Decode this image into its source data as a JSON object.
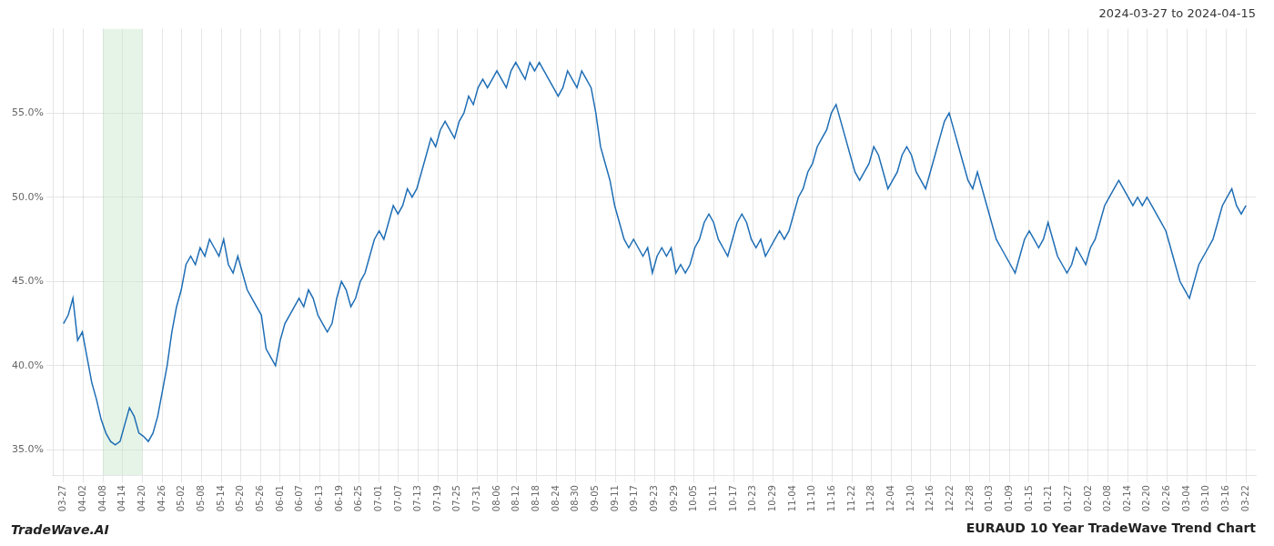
{
  "chart_data": {
    "type": "line",
    "title": "EURAUD 10 Year TradeWave Trend Chart",
    "subtitle": "2024-03-27 to 2024-04-15",
    "annotations": [
      "TradeWave.AI"
    ],
    "color": "#1f6eb5",
    "grid": true,
    "shaded_range": {
      "from": 8.3667,
      "to": 16.7333,
      "color": "#c8e6c9"
    },
    "xlim": [
      -2.0917,
      253.0917
    ],
    "xticks": [
      {
        "value": 0,
        "label": "03-27"
      },
      {
        "value": 4.1833,
        "label": "04-02"
      },
      {
        "value": 8.3667,
        "label": "04-08"
      },
      {
        "value": 12.55,
        "label": "04-14"
      },
      {
        "value": 16.7333,
        "label": "04-20"
      },
      {
        "value": 20.9167,
        "label": "04-26"
      },
      {
        "value": 25.1,
        "label": "05-02"
      },
      {
        "value": 29.2833,
        "label": "05-08"
      },
      {
        "value": 33.4667,
        "label": "05-14"
      },
      {
        "value": 37.65,
        "label": "05-20"
      },
      {
        "value": 41.8333,
        "label": "05-26"
      },
      {
        "value": 46.0167,
        "label": "06-01"
      },
      {
        "value": 50.2,
        "label": "06-07"
      },
      {
        "value": 54.3833,
        "label": "06-13"
      },
      {
        "value": 58.5667,
        "label": "06-19"
      },
      {
        "value": 62.75,
        "label": "06-25"
      },
      {
        "value": 66.9333,
        "label": "07-01"
      },
      {
        "value": 71.1167,
        "label": "07-07"
      },
      {
        "value": 75.3,
        "label": "07-13"
      },
      {
        "value": 79.4833,
        "label": "07-19"
      },
      {
        "value": 83.6667,
        "label": "07-25"
      },
      {
        "value": 87.85,
        "label": "07-31"
      },
      {
        "value": 92.0333,
        "label": "08-06"
      },
      {
        "value": 96.2167,
        "label": "08-12"
      },
      {
        "value": 100.4,
        "label": "08-18"
      },
      {
        "value": 104.5833,
        "label": "08-24"
      },
      {
        "value": 108.7667,
        "label": "08-30"
      },
      {
        "value": 112.95,
        "label": "09-05"
      },
      {
        "value": 117.1333,
        "label": "09-11"
      },
      {
        "value": 121.3167,
        "label": "09-17"
      },
      {
        "value": 125.5,
        "label": "09-23"
      },
      {
        "value": 129.6833,
        "label": "09-29"
      },
      {
        "value": 133.8667,
        "label": "10-05"
      },
      {
        "value": 138.05,
        "label": "10-11"
      },
      {
        "value": 142.2333,
        "label": "10-17"
      },
      {
        "value": 146.4167,
        "label": "10-23"
      },
      {
        "value": 150.6,
        "label": "10-29"
      },
      {
        "value": 154.7833,
        "label": "11-04"
      },
      {
        "value": 158.9667,
        "label": "11-10"
      },
      {
        "value": 163.15,
        "label": "11-16"
      },
      {
        "value": 167.3333,
        "label": "11-22"
      },
      {
        "value": 171.5167,
        "label": "11-28"
      },
      {
        "value": 175.7,
        "label": "12-04"
      },
      {
        "value": 179.8833,
        "label": "12-10"
      },
      {
        "value": 184.0667,
        "label": "12-16"
      },
      {
        "value": 188.25,
        "label": "12-22"
      },
      {
        "value": 192.4333,
        "label": "12-28"
      },
      {
        "value": 196.6167,
        "label": "01-03"
      },
      {
        "value": 200.8,
        "label": "01-09"
      },
      {
        "value": 204.9833,
        "label": "01-15"
      },
      {
        "value": 209.1667,
        "label": "01-21"
      },
      {
        "value": 213.35,
        "label": "01-27"
      },
      {
        "value": 217.5333,
        "label": "02-02"
      },
      {
        "value": 221.7167,
        "label": "02-08"
      },
      {
        "value": 225.9,
        "label": "02-14"
      },
      {
        "value": 230.0833,
        "label": "02-20"
      },
      {
        "value": 234.2667,
        "label": "02-26"
      },
      {
        "value": 238.45,
        "label": "03-04"
      },
      {
        "value": 242.6333,
        "label": "03-10"
      },
      {
        "value": 246.8167,
        "label": "03-16"
      },
      {
        "value": 251,
        "label": "03-22"
      }
    ],
    "ylim": [
      33.5,
      60.0
    ],
    "yticks": [
      {
        "value": 35.0,
        "label": "35.0%"
      },
      {
        "value": 40.0,
        "label": "40.0%"
      },
      {
        "value": 45.0,
        "label": "45.0%"
      },
      {
        "value": 50.0,
        "label": "50.0%"
      },
      {
        "value": 55.0,
        "label": "55.0%"
      }
    ],
    "x": [
      0,
      1,
      2,
      3,
      4,
      5,
      6,
      7,
      8,
      9,
      10,
      11,
      12,
      13,
      14,
      15,
      16,
      17,
      18,
      19,
      20,
      21,
      22,
      23,
      24,
      25,
      26,
      27,
      28,
      29,
      30,
      31,
      32,
      33,
      34,
      35,
      36,
      37,
      38,
      39,
      40,
      41,
      42,
      43,
      44,
      45,
      46,
      47,
      48,
      49,
      50,
      51,
      52,
      53,
      54,
      55,
      56,
      57,
      58,
      59,
      60,
      61,
      62,
      63,
      64,
      65,
      66,
      67,
      68,
      69,
      70,
      71,
      72,
      73,
      74,
      75,
      76,
      77,
      78,
      79,
      80,
      81,
      82,
      83,
      84,
      85,
      86,
      87,
      88,
      89,
      90,
      91,
      92,
      93,
      94,
      95,
      96,
      97,
      98,
      99,
      100,
      101,
      102,
      103,
      104,
      105,
      106,
      107,
      108,
      109,
      110,
      111,
      112,
      113,
      114,
      115,
      116,
      117,
      118,
      119,
      120,
      121,
      122,
      123,
      124,
      125,
      126,
      127,
      128,
      129,
      130,
      131,
      132,
      133,
      134,
      135,
      136,
      137,
      138,
      139,
      140,
      141,
      142,
      143,
      144,
      145,
      146,
      147,
      148,
      149,
      150,
      151,
      152,
      153,
      154,
      155,
      156,
      157,
      158,
      159,
      160,
      161,
      162,
      163,
      164,
      165,
      166,
      167,
      168,
      169,
      170,
      171,
      172,
      173,
      174,
      175,
      176,
      177,
      178,
      179,
      180,
      181,
      182,
      183,
      184,
      185,
      186,
      187,
      188,
      189,
      190,
      191,
      192,
      193,
      194,
      195,
      196,
      197,
      198,
      199,
      200,
      201,
      202,
      203,
      204,
      205,
      206,
      207,
      208,
      209,
      210,
      211,
      212,
      213,
      214,
      215,
      216,
      217,
      218,
      219,
      220,
      221,
      222,
      223,
      224,
      225,
      226,
      227,
      228,
      229,
      230,
      231,
      232,
      233,
      234,
      235,
      236,
      237,
      238,
      239,
      240,
      241,
      242,
      243,
      244,
      245,
      246,
      247,
      248,
      249,
      250,
      251
    ],
    "values": [
      42.5,
      43.0,
      44.0,
      41.5,
      42.0,
      40.5,
      39.0,
      38.0,
      36.8,
      36.0,
      35.5,
      35.3,
      35.5,
      36.5,
      37.5,
      37.0,
      36.0,
      35.8,
      35.5,
      36.0,
      37.0,
      38.5,
      40.0,
      42.0,
      43.5,
      44.5,
      46.0,
      46.5,
      46.0,
      47.0,
      46.5,
      47.5,
      47.0,
      46.5,
      47.5,
      46.0,
      45.5,
      46.5,
      45.5,
      44.5,
      44.0,
      43.5,
      43.0,
      41.0,
      40.5,
      40.0,
      41.5,
      42.5,
      43.0,
      43.5,
      44.0,
      43.5,
      44.5,
      44.0,
      43.0,
      42.5,
      42.0,
      42.5,
      44.0,
      45.0,
      44.5,
      43.5,
      44.0,
      45.0,
      45.5,
      46.5,
      47.5,
      48.0,
      47.5,
      48.5,
      49.5,
      49.0,
      49.5,
      50.5,
      50.0,
      50.5,
      51.5,
      52.5,
      53.5,
      53.0,
      54.0,
      54.5,
      54.0,
      53.5,
      54.5,
      55.0,
      56.0,
      55.5,
      56.5,
      57.0,
      56.5,
      57.0,
      57.5,
      57.0,
      56.5,
      57.5,
      58.0,
      57.5,
      57.0,
      58.0,
      57.5,
      58.0,
      57.5,
      57.0,
      56.5,
      56.0,
      56.5,
      57.5,
      57.0,
      56.5,
      57.5,
      57.0,
      56.5,
      55.0,
      53.0,
      52.0,
      51.0,
      49.5,
      48.5,
      47.5,
      47.0,
      47.5,
      47.0,
      46.5,
      47.0,
      45.5,
      46.5,
      47.0,
      46.5,
      47.0,
      45.5,
      46.0,
      45.5,
      46.0,
      47.0,
      47.5,
      48.5,
      49.0,
      48.5,
      47.5,
      47.0,
      46.5,
      47.5,
      48.5,
      49.0,
      48.5,
      47.5,
      47.0,
      47.5,
      46.5,
      47.0,
      47.5,
      48.0,
      47.5,
      48.0,
      49.0,
      50.0,
      50.5,
      51.5,
      52.0,
      53.0,
      53.5,
      54.0,
      55.0,
      55.5,
      54.5,
      53.5,
      52.5,
      51.5,
      51.0,
      51.5,
      52.0,
      53.0,
      52.5,
      51.5,
      50.5,
      51.0,
      51.5,
      52.5,
      53.0,
      52.5,
      51.5,
      51.0,
      50.5,
      51.5,
      52.5,
      53.5,
      54.5,
      55.0,
      54.0,
      53.0,
      52.0,
      51.0,
      50.5,
      51.5,
      50.5,
      49.5,
      48.5,
      47.5,
      47.0,
      46.5,
      46.0,
      45.5,
      46.5,
      47.5,
      48.0,
      47.5,
      47.0,
      47.5,
      48.5,
      47.5,
      46.5,
      46.0,
      45.5,
      46.0,
      47.0,
      46.5,
      46.0,
      47.0,
      47.5,
      48.5,
      49.5,
      50.0,
      50.5,
      51.0,
      50.5,
      50.0,
      49.5,
      50.0,
      49.5,
      50.0,
      49.5,
      49.0,
      48.5,
      48.0,
      47.0,
      46.0,
      45.0,
      44.5,
      44.0,
      45.0,
      46.0,
      46.5,
      47.0,
      47.5,
      48.5,
      49.5,
      50.0,
      50.5,
      49.5,
      49.0,
      49.5
    ]
  }
}
